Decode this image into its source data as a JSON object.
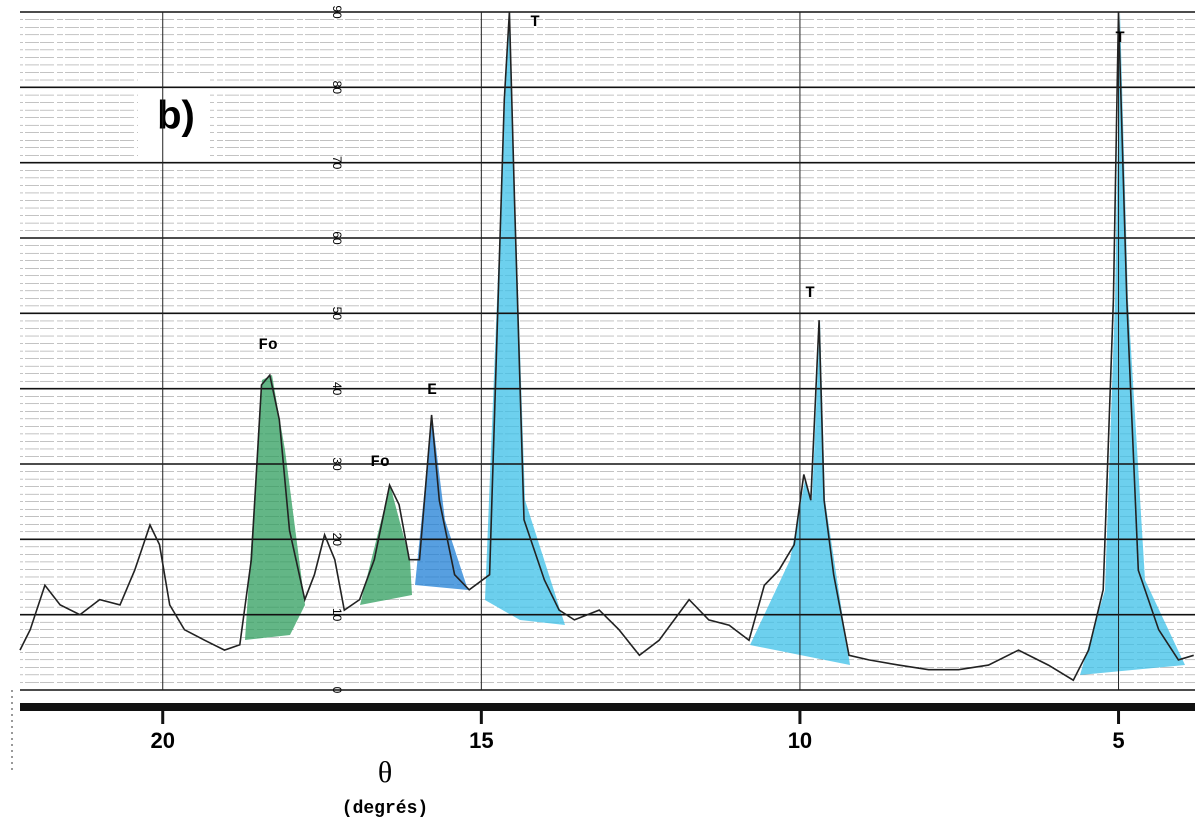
{
  "chart_data": {
    "type": "line",
    "panel_label": "b)",
    "xlabel": "θ",
    "xlabel_unit": "(degrés)",
    "x": [
      22.24,
      22.08,
      21.85,
      21.61,
      21.3,
      20.99,
      20.67,
      20.44,
      20.2,
      20.05,
      19.89,
      19.66,
      19.34,
      19.03,
      18.79,
      18.61,
      18.45,
      18.32,
      18.17,
      18.01,
      17.77,
      17.62,
      17.46,
      17.3,
      17.15,
      16.91,
      16.68,
      16.44,
      16.29,
      16.13,
      15.97,
      15.78,
      15.66,
      15.42,
      15.19,
      14.87,
      14.64,
      14.56,
      14.48,
      14.33,
      14.01,
      13.78,
      13.54,
      13.15,
      12.84,
      12.52,
      12.21,
      11.74,
      11.43,
      11.11,
      10.8,
      10.56,
      10.33,
      10.09,
      9.94,
      9.83,
      9.7,
      9.62,
      9.47,
      9.23,
      8.92,
      8.45,
      7.98,
      7.51,
      7.04,
      6.57,
      6.1,
      5.71,
      5.47,
      5.24,
      5.08,
      5.0,
      4.87,
      4.69,
      4.37,
      4.06,
      3.82
    ],
    "values": [
      5.3,
      8.0,
      13.9,
      11.3,
      10.0,
      12.0,
      11.3,
      15.9,
      21.9,
      19.3,
      11.3,
      8.0,
      6.6,
      5.3,
      6.0,
      17.3,
      40.5,
      41.8,
      35.9,
      21.2,
      12.0,
      15.3,
      20.6,
      17.3,
      10.6,
      12.0,
      17.3,
      27.2,
      24.6,
      17.3,
      17.3,
      36.5,
      25.2,
      15.3,
      13.3,
      15.3,
      78.4,
      90.0,
      65.1,
      22.6,
      14.6,
      10.6,
      9.3,
      10.6,
      8.0,
      4.6,
      6.6,
      12.0,
      9.3,
      8.6,
      6.6,
      13.9,
      15.9,
      19.3,
      28.6,
      25.2,
      49.1,
      25.2,
      15.3,
      4.6,
      4.0,
      3.3,
      2.7,
      2.7,
      3.3,
      5.3,
      3.3,
      1.3,
      5.3,
      13.3,
      51.8,
      90.0,
      51.8,
      15.9,
      8.0,
      4.0,
      4.6
    ],
    "color": "#222222",
    "xlim": [
      22.24,
      3.8
    ],
    "xticks": [
      20,
      15,
      10,
      5
    ],
    "ylim": [
      0,
      90
    ],
    "yticks": [
      0,
      10,
      20,
      30,
      40,
      50,
      60,
      70,
      80,
      90
    ],
    "grid": true,
    "annotations": [
      "Fo",
      "Fo",
      "E",
      "T",
      "T",
      "T"
    ]
  }
}
